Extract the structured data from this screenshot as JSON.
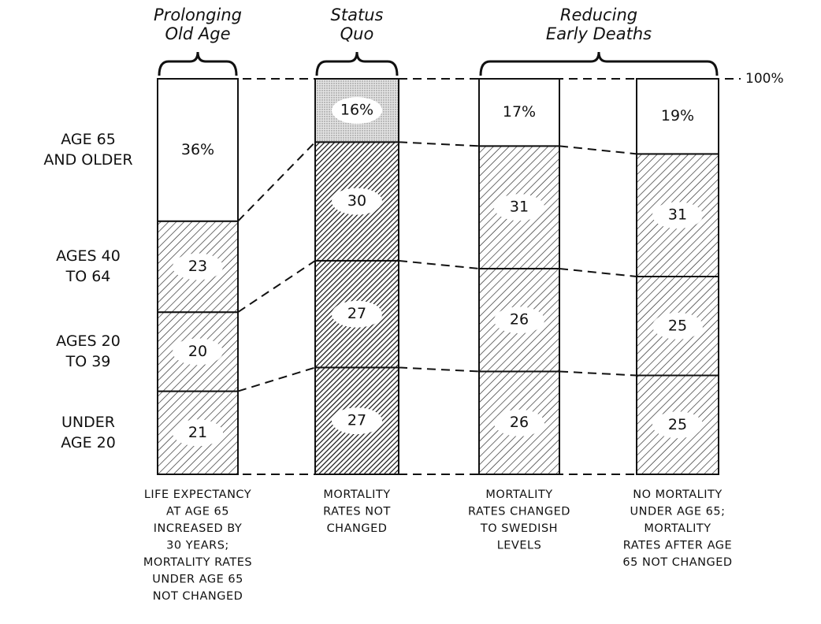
{
  "chart_data": {
    "type": "stacked-bar",
    "groups": [
      [
        "Prolonging",
        "Old Age"
      ],
      [
        "Status",
        "Quo"
      ],
      [
        "Reducing",
        "Early Deaths"
      ]
    ],
    "categories": [
      [
        "LIFE EXPECTANCY",
        "AT AGE 65",
        "INCREASED BY",
        "30 YEARS;",
        "MORTALITY RATES",
        "UNDER AGE 65",
        "NOT CHANGED"
      ],
      [
        "MORTALITY",
        "RATES NOT",
        "CHANGED"
      ],
      [
        "MORTALITY",
        "RATES CHANGED",
        "TO SWEDISH",
        "LEVELS"
      ],
      [
        "NO MORTALITY",
        "UNDER AGE 65;",
        "MORTALITY",
        "RATES AFTER AGE",
        "65 NOT CHANGED"
      ]
    ],
    "series": [
      {
        "name": [
          "UNDER",
          "AGE 20"
        ],
        "values": [
          21,
          27,
          26,
          25
        ]
      },
      {
        "name": [
          "AGES 20",
          "TO 39"
        ],
        "values": [
          20,
          27,
          26,
          25
        ]
      },
      {
        "name": [
          "AGES 40",
          "TO 64"
        ],
        "values": [
          23,
          30,
          31,
          31
        ]
      },
      {
        "name": [
          "AGE 65",
          "AND OLDER"
        ],
        "values": [
          36,
          16,
          17,
          19
        ],
        "value_labels": [
          "36%",
          "16%",
          "17%",
          "19%"
        ]
      }
    ],
    "ylim": [
      0,
      100
    ],
    "yticks": [
      {
        "value": 100,
        "label": "100%"
      }
    ]
  }
}
